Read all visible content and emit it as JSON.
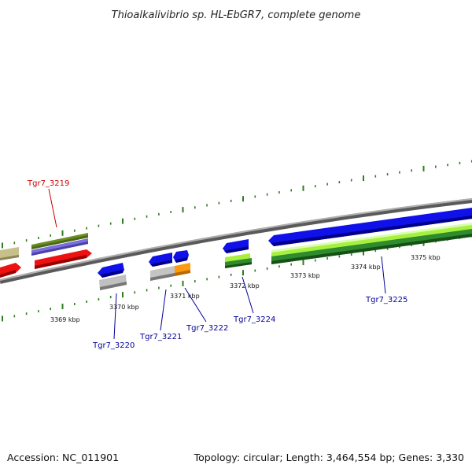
{
  "title": "Thioalkalivibrio sp. HL-EbGR7, complete genome",
  "footer": {
    "accession": "Accession: NC_011901",
    "summary": "Topology: circular; Length: 3,464,554 bp; Genes: 3,330"
  },
  "kbp_labels": [
    "3369 kbp",
    "3370 kbp",
    "3371 kbp",
    "3372 kbp",
    "3373 kbp",
    "3374 kbp",
    "3375 kbp"
  ],
  "gene_labels": {
    "g3219": "Tgr7_3219",
    "g3220": "Tgr7_3220",
    "g3221": "Tgr7_3221",
    "g3222": "Tgr7_3222",
    "g3224": "Tgr7_3224",
    "g3225": "Tgr7_3225"
  },
  "colors": {
    "backbone": "#8a8a8a",
    "tick": "#2e7d1e",
    "cds_blue": "#1010e8",
    "cds_red": "#ee1111",
    "cds_olive": "#6b8e23",
    "cds_khaki": "#c8c08a",
    "cds_gray": "#b8b8b8",
    "cds_orange": "#ff9a10",
    "cds_lime": "#a8f040",
    "cds_darkgreen": "#2e8b2e",
    "highlight_label": "#cc0000",
    "gene_label": "#000099"
  }
}
